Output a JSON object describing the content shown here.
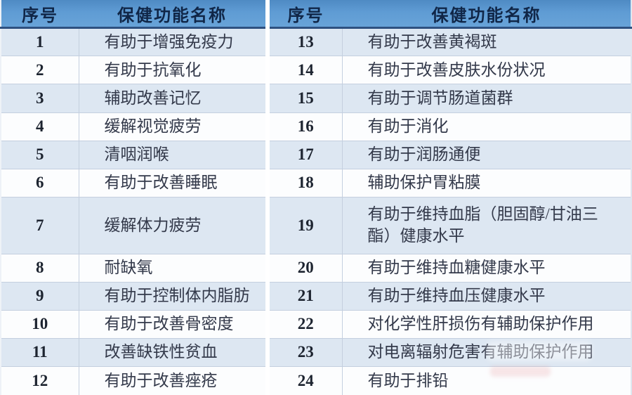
{
  "tables": [
    {
      "header": {
        "no": "序号",
        "name": "保健功能名称"
      },
      "rows": [
        {
          "no": "1",
          "name": "有助于增强免疫力"
        },
        {
          "no": "2",
          "name": "有助于抗氧化"
        },
        {
          "no": "3",
          "name": "辅助改善记忆"
        },
        {
          "no": "4",
          "name": "缓解视觉疲劳"
        },
        {
          "no": "5",
          "name": "清咽润喉"
        },
        {
          "no": "6",
          "name": "有助于改善睡眠"
        },
        {
          "no": "7",
          "name": "缓解体力疲劳"
        },
        {
          "no": "8",
          "name": "耐缺氧"
        },
        {
          "no": "9",
          "name": "有助于控制体内脂肪"
        },
        {
          "no": "10",
          "name": "有助于改善骨密度"
        },
        {
          "no": "11",
          "name": "改善缺铁性贫血"
        },
        {
          "no": "12",
          "name": "有助于改善痤疮"
        }
      ]
    },
    {
      "header": {
        "no": "序号",
        "name": "保健功能名称"
      },
      "rows": [
        {
          "no": "13",
          "name": "有助于改善黄褐斑"
        },
        {
          "no": "14",
          "name": "有助于改善皮肤水份状况"
        },
        {
          "no": "15",
          "name": "有助于调节肠道菌群"
        },
        {
          "no": "16",
          "name": "有助于消化"
        },
        {
          "no": "17",
          "name": "有助于润肠通便"
        },
        {
          "no": "18",
          "name": "辅助保护胃粘膜"
        },
        {
          "no": "19",
          "name": "有助于维持血脂（胆固醇/甘油三酯）健康水平"
        },
        {
          "no": "20",
          "name": "有助于维持血糖健康水平"
        },
        {
          "no": "21",
          "name": "有助于维持血压健康水平"
        },
        {
          "no": "22",
          "name": "对化学性肝损伤有辅助保护作用"
        },
        {
          "no": "23",
          "name": "对电离辐射危害有辅助保护作用"
        },
        {
          "no": "24",
          "name": "有助于排铅"
        }
      ]
    }
  ],
  "colors": {
    "header_bg": "#5f9cd4",
    "header_bg_top": "#4e8ac3",
    "header_text": "#102647",
    "header_underline": "#2e5180",
    "row_alt": "#dde7f2",
    "row_white": "#fcfdfe",
    "grid_line": "#c4cfdf",
    "body_text": "#33394a",
    "number_text": "#1d2430"
  }
}
